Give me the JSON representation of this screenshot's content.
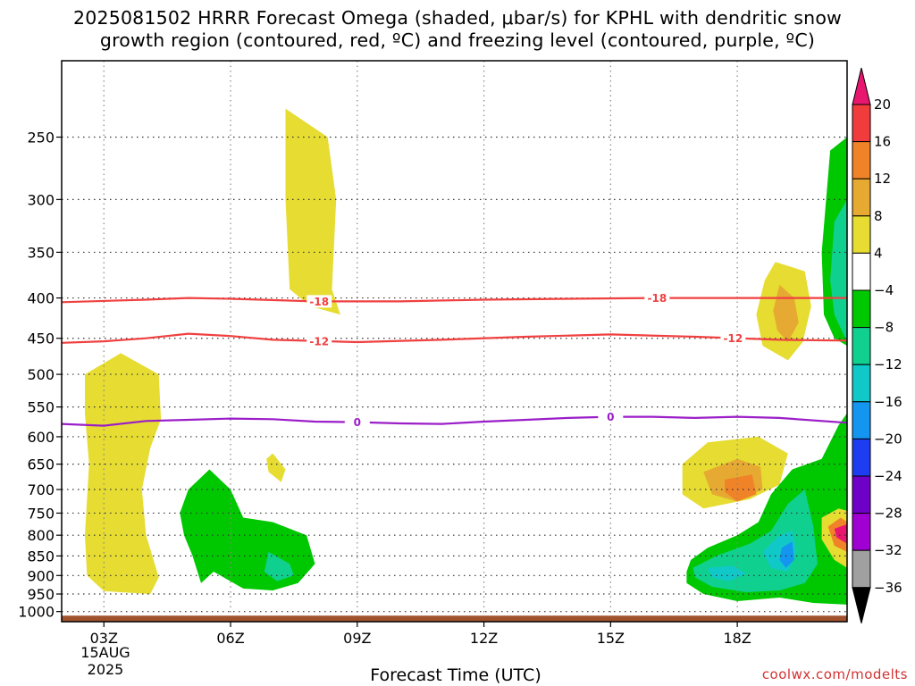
{
  "title": {
    "line1": "2025081502 HRRR Forecast Omega (shaded, μbar/s) for KPHL with dendritic snow",
    "line2": "growth region (contoured, red, ºC) and freezing level (contoured, purple, ºC)"
  },
  "xlabel": "Forecast Time (UTC)",
  "credit": "coolwx.com/modelts",
  "date_label": [
    "15AUG",
    "2025"
  ],
  "chart_data": {
    "type": "heatmap",
    "x_axis": {
      "label": "Forecast Time (UTC)",
      "ticks": [
        3,
        6,
        9,
        12,
        15,
        18
      ],
      "tick_labels": [
        "03Z",
        "06Z",
        "09Z",
        "12Z",
        "15Z",
        "18Z"
      ],
      "range": [
        2,
        20.6
      ]
    },
    "y_axis": {
      "label": "",
      "ticks": [
        250,
        300,
        350,
        400,
        450,
        500,
        550,
        600,
        650,
        700,
        750,
        800,
        850,
        900,
        950,
        1000
      ],
      "tick_labels": [
        "250",
        "300",
        "350",
        "400",
        "450",
        "500",
        "550",
        "600",
        "650",
        "700",
        "750",
        "800",
        "850",
        "900",
        "950",
        "1000"
      ],
      "scale": "log-pressure (inverted)",
      "range": [
        1030,
        200
      ]
    },
    "grid": true,
    "colorbar": {
      "levels": [
        20,
        16,
        12,
        8,
        4,
        -4,
        -8,
        -12,
        -16,
        -20,
        -24,
        -28,
        -32,
        -36
      ],
      "colors": [
        "#e8166e",
        "#f03c3c",
        "#f08228",
        "#e6aa32",
        "#e6dc32",
        "#ffffff",
        "#00c800",
        "#10d090",
        "#10c8c8",
        "#1496f0",
        "#1e3cf0",
        "#6e00c8",
        "#a000d2",
        "#a0a0a0",
        "#000000"
      ]
    },
    "contours": [
      {
        "label": "-18",
        "color": "#f04040",
        "series": [
          [
            2,
            405
          ],
          [
            4,
            402
          ],
          [
            5,
            400
          ],
          [
            6,
            401
          ],
          [
            8,
            404
          ],
          [
            10,
            404
          ],
          [
            12,
            402
          ],
          [
            14,
            401
          ],
          [
            16,
            400
          ],
          [
            18,
            400
          ],
          [
            20.6,
            400
          ]
        ],
        "label_x": [
          8.1,
          16.1
        ]
      },
      {
        "label": "-12",
        "color": "#f04040",
        "series": [
          [
            2,
            456
          ],
          [
            3,
            454
          ],
          [
            4,
            450
          ],
          [
            5,
            444
          ],
          [
            6,
            447
          ],
          [
            7,
            452
          ],
          [
            9,
            455
          ],
          [
            11,
            452
          ],
          [
            13,
            448
          ],
          [
            15,
            445
          ],
          [
            17,
            448
          ],
          [
            19,
            452
          ],
          [
            20.6,
            453
          ]
        ],
        "label_x": [
          8.1,
          17.9
        ]
      },
      {
        "label": "0",
        "color": "#9b1ec8",
        "series": [
          [
            2,
            578
          ],
          [
            3,
            581
          ],
          [
            4,
            573
          ],
          [
            5,
            571
          ],
          [
            6,
            569
          ],
          [
            7,
            570
          ],
          [
            8,
            574
          ],
          [
            9,
            575
          ],
          [
            10,
            577
          ],
          [
            11,
            578
          ],
          [
            12,
            574
          ],
          [
            13,
            571
          ],
          [
            14,
            568
          ],
          [
            15,
            566
          ],
          [
            16,
            566
          ],
          [
            17,
            568
          ],
          [
            18,
            566
          ],
          [
            19,
            568
          ],
          [
            20.6,
            576
          ]
        ],
        "label_x": [
          9,
          15
        ]
      }
    ],
    "regions": [
      {
        "value": 4,
        "color": "#e6dc32",
        "points": [
          [
            2.55,
            500
          ],
          [
            3.4,
            470
          ],
          [
            4.3,
            500
          ],
          [
            4.35,
            570
          ],
          [
            4.1,
            620
          ],
          [
            3.9,
            700
          ],
          [
            4.0,
            800
          ],
          [
            4.3,
            905
          ],
          [
            4.1,
            950
          ],
          [
            3.0,
            942
          ],
          [
            2.6,
            900
          ],
          [
            2.55,
            800
          ],
          [
            2.65,
            650
          ],
          [
            2.55,
            560
          ]
        ]
      },
      {
        "value": 4,
        "color": "#e6dc32",
        "points": [
          [
            7.0,
            630
          ],
          [
            7.3,
            660
          ],
          [
            7.2,
            685
          ],
          [
            6.9,
            665
          ],
          [
            6.85,
            640
          ]
        ]
      },
      {
        "value": 4,
        "color": "#e6dc32",
        "points": [
          [
            7.3,
            230
          ],
          [
            8.3,
            250
          ],
          [
            8.5,
            300
          ],
          [
            8.4,
            390
          ],
          [
            8.6,
            420
          ],
          [
            7.9,
            410
          ],
          [
            7.4,
            390
          ],
          [
            7.3,
            300
          ]
        ]
      },
      {
        "value": 4,
        "color": "#e6dc32",
        "points": [
          [
            18.9,
            360
          ],
          [
            19.6,
            370
          ],
          [
            19.75,
            410
          ],
          [
            19.55,
            455
          ],
          [
            19.2,
            480
          ],
          [
            18.6,
            460
          ],
          [
            18.45,
            420
          ],
          [
            18.65,
            380
          ]
        ]
      },
      {
        "value": 8,
        "color": "#e6aa32",
        "points": [
          [
            19.0,
            385
          ],
          [
            19.35,
            400
          ],
          [
            19.45,
            430
          ],
          [
            19.2,
            455
          ],
          [
            18.95,
            440
          ],
          [
            18.85,
            415
          ]
        ]
      },
      {
        "value": 4,
        "color": "#e6dc32",
        "points": [
          [
            16.7,
            650
          ],
          [
            17.3,
            610
          ],
          [
            18.5,
            600
          ],
          [
            19.2,
            630
          ],
          [
            19.0,
            690
          ],
          [
            18.3,
            720
          ],
          [
            17.2,
            740
          ],
          [
            16.7,
            710
          ]
        ]
      },
      {
        "value": 8,
        "color": "#e6aa32",
        "points": [
          [
            17.2,
            665
          ],
          [
            18.0,
            640
          ],
          [
            18.55,
            655
          ],
          [
            18.6,
            700
          ],
          [
            18.0,
            725
          ],
          [
            17.4,
            710
          ]
        ]
      },
      {
        "value": 12,
        "color": "#f08228",
        "points": [
          [
            17.7,
            680
          ],
          [
            18.35,
            670
          ],
          [
            18.45,
            710
          ],
          [
            18.0,
            725
          ],
          [
            17.7,
            705
          ]
        ]
      },
      {
        "value": -4,
        "color": "#00c800",
        "points": [
          [
            5.0,
            700
          ],
          [
            5.5,
            660
          ],
          [
            6.0,
            700
          ],
          [
            6.3,
            760
          ],
          [
            7.0,
            770
          ],
          [
            7.8,
            800
          ],
          [
            8.0,
            870
          ],
          [
            7.6,
            920
          ],
          [
            7.0,
            940
          ],
          [
            6.3,
            935
          ],
          [
            5.6,
            890
          ],
          [
            5.3,
            920
          ],
          [
            5.1,
            850
          ],
          [
            4.9,
            800
          ],
          [
            4.8,
            750
          ]
        ]
      },
      {
        "value": -8,
        "color": "#10d090",
        "points": [
          [
            6.9,
            840
          ],
          [
            7.4,
            870
          ],
          [
            7.5,
            900
          ],
          [
            7.1,
            915
          ],
          [
            6.8,
            890
          ]
        ]
      },
      {
        "value": -4,
        "color": "#00c800",
        "points": [
          [
            20.2,
            260
          ],
          [
            20.6,
            250
          ],
          [
            20.6,
            460
          ],
          [
            20.3,
            450
          ],
          [
            20.05,
            420
          ],
          [
            20.0,
            350
          ]
        ]
      },
      {
        "value": -8,
        "color": "#10d090",
        "points": [
          [
            20.3,
            320
          ],
          [
            20.6,
            300
          ],
          [
            20.6,
            455
          ],
          [
            20.3,
            420
          ],
          [
            20.2,
            380
          ]
        ]
      },
      {
        "value": -4,
        "color": "#00c800",
        "points": [
          [
            16.8,
            890
          ],
          [
            16.9,
            860
          ],
          [
            17.3,
            830
          ],
          [
            18.0,
            800
          ],
          [
            18.5,
            770
          ],
          [
            18.8,
            710
          ],
          [
            19.3,
            660
          ],
          [
            20.0,
            640
          ],
          [
            20.4,
            580
          ],
          [
            20.6,
            560
          ],
          [
            20.6,
            980
          ],
          [
            19.8,
            975
          ],
          [
            19.0,
            960
          ],
          [
            18.0,
            970
          ],
          [
            17.2,
            950
          ],
          [
            16.8,
            920
          ]
        ]
      },
      {
        "value": -8,
        "color": "#10d090",
        "points": [
          [
            16.95,
            880
          ],
          [
            17.5,
            850
          ],
          [
            18.3,
            820
          ],
          [
            18.8,
            790
          ],
          [
            19.2,
            730
          ],
          [
            19.6,
            700
          ],
          [
            19.8,
            780
          ],
          [
            19.9,
            870
          ],
          [
            19.6,
            920
          ],
          [
            19.0,
            940
          ],
          [
            18.2,
            945
          ],
          [
            17.4,
            930
          ],
          [
            17.0,
            905
          ]
        ]
      },
      {
        "value": -12,
        "color": "#10c8c8",
        "points": [
          [
            17.3,
            880
          ],
          [
            17.9,
            875
          ],
          [
            18.2,
            895
          ],
          [
            17.8,
            915
          ],
          [
            17.4,
            905
          ]
        ]
      },
      {
        "value": -12,
        "color": "#10c8c8",
        "points": [
          [
            18.6,
            840
          ],
          [
            19.0,
            800
          ],
          [
            19.3,
            790
          ],
          [
            19.4,
            840
          ],
          [
            19.2,
            890
          ],
          [
            18.8,
            880
          ]
        ]
      },
      {
        "value": -16,
        "color": "#1496f0",
        "points": [
          [
            19.05,
            830
          ],
          [
            19.3,
            815
          ],
          [
            19.35,
            860
          ],
          [
            19.15,
            880
          ],
          [
            19.0,
            860
          ]
        ]
      },
      {
        "value": 4,
        "color": "#e6dc32",
        "points": [
          [
            20.0,
            760
          ],
          [
            20.4,
            740
          ],
          [
            20.6,
            745
          ],
          [
            20.6,
            880
          ],
          [
            20.3,
            860
          ],
          [
            20.0,
            810
          ]
        ]
      },
      {
        "value": 12,
        "color": "#f08228",
        "points": [
          [
            20.15,
            780
          ],
          [
            20.45,
            760
          ],
          [
            20.6,
            770
          ],
          [
            20.6,
            840
          ],
          [
            20.3,
            825
          ]
        ]
      },
      {
        "value": 20,
        "color": "#e8166e",
        "points": [
          [
            20.3,
            785
          ],
          [
            20.6,
            775
          ],
          [
            20.6,
            820
          ],
          [
            20.35,
            805
          ]
        ]
      }
    ],
    "ground": {
      "color": "#a0522d",
      "pressure_top": 1012
    }
  }
}
